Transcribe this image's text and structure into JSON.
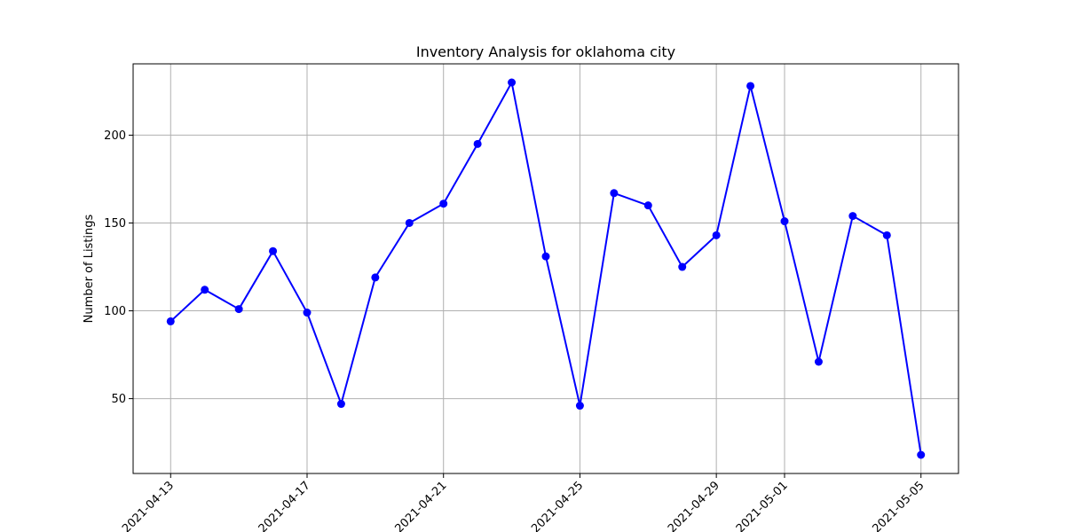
{
  "chart_data": {
    "type": "line",
    "title": "Inventory Analysis for oklahoma city",
    "xlabel": "",
    "ylabel": "Number of Listings",
    "x": [
      "2021-04-13",
      "2021-04-14",
      "2021-04-15",
      "2021-04-16",
      "2021-04-17",
      "2021-04-18",
      "2021-04-19",
      "2021-04-20",
      "2021-04-21",
      "2021-04-22",
      "2021-04-23",
      "2021-04-24",
      "2021-04-25",
      "2021-04-26",
      "2021-04-27",
      "2021-04-28",
      "2021-04-29",
      "2021-04-30",
      "2021-05-01",
      "2021-05-02",
      "2021-05-03",
      "2021-05-04",
      "2021-05-05"
    ],
    "series": [
      {
        "values": [
          94,
          112,
          101,
          134,
          99,
          47,
          119,
          150,
          161,
          195,
          230,
          131,
          46,
          167,
          160,
          125,
          143,
          228,
          151,
          71,
          154,
          143,
          18
        ],
        "color": "#0000ff",
        "marker": "circle"
      }
    ],
    "xticks": [
      "2021-04-13",
      "2021-04-17",
      "2021-04-21",
      "2021-04-25",
      "2021-04-29",
      "2021-05-01",
      "2021-05-05"
    ],
    "yticks": [
      50,
      100,
      150,
      200
    ],
    "ylim": [
      7.4,
      240.6
    ],
    "xlim": [
      "2021-04-11 21:36",
      "2021-05-06 02:24"
    ],
    "grid": true,
    "legend": "none"
  }
}
